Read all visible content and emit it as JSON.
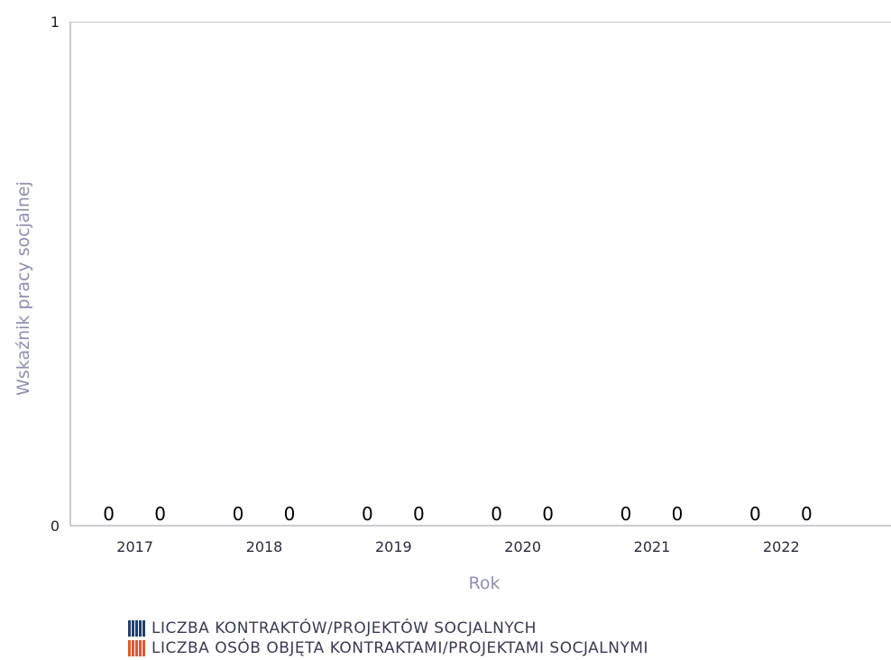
{
  "chart_data": {
    "type": "bar",
    "categories": [
      "2017",
      "2018",
      "2019",
      "2020",
      "2021",
      "2022"
    ],
    "series": [
      {
        "name": "LICZBA KONTRAKTÓW/PROJEKTÓW SOCJALNYCH",
        "values": [
          0,
          0,
          0,
          0,
          0,
          0
        ],
        "data_labels": [
          "0",
          "0",
          "0",
          "0",
          "0",
          "0"
        ],
        "color": "#1f3f6e"
      },
      {
        "name": "LICZBA OSÓB OBJĘTA KONTRAKTAMI/PROJEKTAMI SOCJALNYMI",
        "values": [
          0,
          0,
          0,
          0,
          0,
          0
        ],
        "data_labels": [
          "0",
          "0",
          "0",
          "0",
          "0",
          "0"
        ],
        "color": "#e2572a"
      }
    ],
    "xlabel": "Rok",
    "ylabel": "Wskaźnik pracy socjalnej",
    "ylim": [
      0,
      1
    ],
    "yticks": [
      "0",
      "1"
    ],
    "grid": false,
    "legend_position": "bottom-left"
  }
}
